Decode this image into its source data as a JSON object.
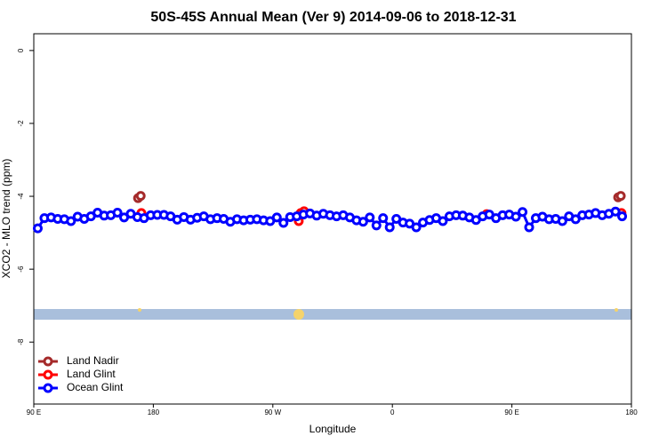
{
  "chart_data": {
    "type": "line",
    "title": "50S-45S Annual Mean (Ver 9)   2014-09-06 to 2018-12-31",
    "x_label": "Longitude",
    "y_label": "XCO2 - MLO trend (ppm)",
    "xlim": [
      90,
      540
    ],
    "xticks": [
      {
        "value": 90,
        "label": "90 E"
      },
      180,
      {
        "value": 270,
        "label": "90 W"
      },
      {
        "value": 360,
        "label": "0"
      },
      {
        "value": 450,
        "label": "90 E"
      },
      {
        "value": 540,
        "label": "180"
      }
    ],
    "ylim": [
      -9.7,
      0.46
    ],
    "yticks": [
      0,
      -2,
      -4,
      -6,
      -8
    ],
    "legend": "bottom-left",
    "series": [
      {
        "name": "Land Nadir",
        "color": "#a52a2a",
        "x": [
          168.5,
          170.5,
          530,
          532
        ],
        "values": [
          -4.05,
          -3.99,
          -4.03,
          -3.99
        ]
      },
      {
        "name": "Land Glint",
        "color": "#ff0000",
        "x": [
          171,
          289.5,
          291,
          293.5,
          431,
          532.5
        ],
        "values": [
          -4.46,
          -4.68,
          -4.46,
          -4.41,
          -4.49,
          -4.46
        ]
      },
      {
        "name": "Ocean Glint",
        "color": "#0000ff",
        "x": [
          93,
          98,
          103,
          108,
          113,
          118,
          123,
          128,
          133,
          138,
          143,
          148,
          153,
          158,
          163,
          168,
          173,
          178,
          183,
          188,
          193,
          198,
          203,
          208,
          213,
          218,
          223,
          228,
          233,
          238,
          243,
          248,
          253,
          258,
          263,
          268,
          273,
          278,
          283,
          288,
          293,
          298,
          303,
          308,
          313,
          318,
          323,
          328,
          333,
          338,
          343,
          348,
          353,
          358,
          363,
          368,
          373,
          378,
          383,
          388,
          393,
          398,
          403,
          408,
          413,
          418,
          423,
          428,
          433,
          438,
          443,
          448,
          453,
          458,
          463,
          468,
          473,
          478,
          483,
          488,
          493,
          498,
          503,
          508,
          513,
          518,
          523,
          528,
          533
        ],
        "values": [
          -4.88,
          -4.6,
          -4.58,
          -4.62,
          -4.63,
          -4.68,
          -4.56,
          -4.62,
          -4.55,
          -4.45,
          -4.53,
          -4.52,
          -4.45,
          -4.58,
          -4.48,
          -4.57,
          -4.6,
          -4.52,
          -4.51,
          -4.51,
          -4.55,
          -4.64,
          -4.57,
          -4.64,
          -4.59,
          -4.55,
          -4.63,
          -4.6,
          -4.62,
          -4.7,
          -4.63,
          -4.66,
          -4.64,
          -4.63,
          -4.66,
          -4.68,
          -4.58,
          -4.73,
          -4.57,
          -4.55,
          -4.5,
          -4.47,
          -4.53,
          -4.48,
          -4.52,
          -4.55,
          -4.52,
          -4.58,
          -4.66,
          -4.7,
          -4.58,
          -4.8,
          -4.6,
          -4.85,
          -4.62,
          -4.72,
          -4.75,
          -4.85,
          -4.72,
          -4.65,
          -4.6,
          -4.68,
          -4.55,
          -4.52,
          -4.53,
          -4.58,
          -4.65,
          -4.55,
          -4.5,
          -4.6,
          -4.52,
          -4.5,
          -4.56,
          -4.43,
          -4.85,
          -4.6,
          -4.56,
          -4.63,
          -4.62,
          -4.68,
          -4.55,
          -4.63,
          -4.52,
          -4.5,
          -4.46,
          -4.52,
          -4.48,
          -4.42,
          -4.55
        ]
      }
    ]
  }
}
